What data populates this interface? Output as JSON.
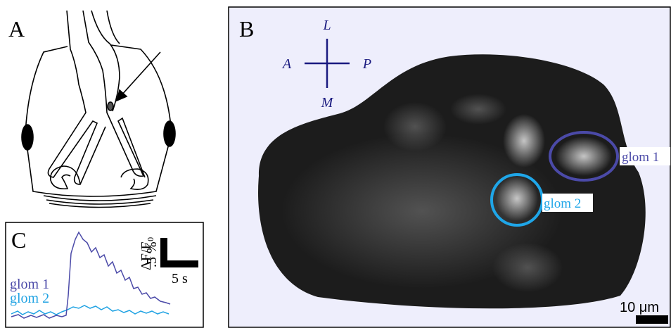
{
  "panels": {
    "a": {
      "label": "A"
    },
    "b": {
      "label": "B",
      "orientation": {
        "lateral": "L",
        "anterior": "A",
        "posterior": "P",
        "medial": "M"
      },
      "regions": [
        {
          "label": "glom 1"
        },
        {
          "label": "glom 2"
        }
      ],
      "scale_bar": "10 μm"
    },
    "c": {
      "label": "C",
      "legend": [
        "glom 1",
        "glom 2"
      ],
      "scale_y_label": "ΔF/F₀",
      "scale_y_value": ".5 %",
      "scale_x_value": "5 s"
    }
  }
}
